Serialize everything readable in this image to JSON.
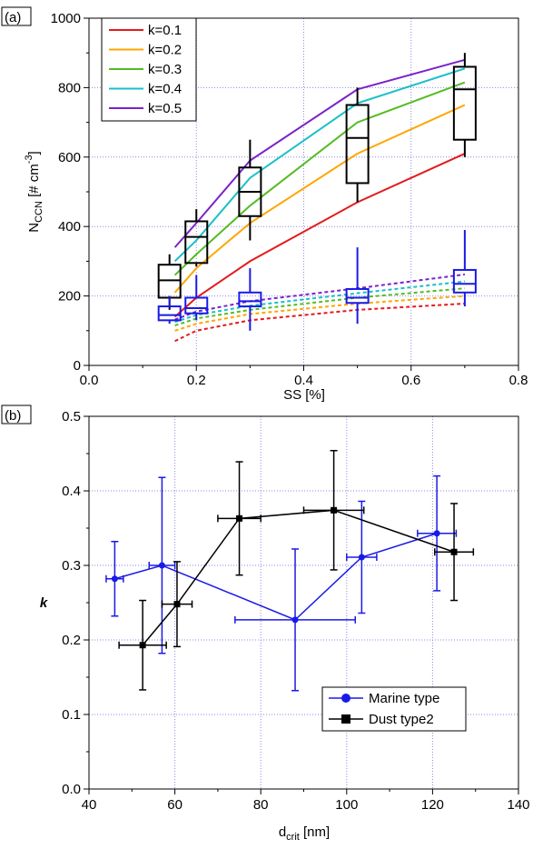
{
  "chart_data": [
    {
      "panel_label": "(a)",
      "type": "line",
      "xlabel": "SS [%]",
      "ylabel_main": "N",
      "ylabel_sub": "CCN",
      "ylabel_rest": " [# cm",
      "ylabel_sup": "-3",
      "ylabel_end": "]",
      "xlim": [
        0.0,
        0.8
      ],
      "ylim": [
        0,
        1000
      ],
      "xticks": [
        "0.0",
        "0.2",
        "0.4",
        "0.6",
        "0.8"
      ],
      "xtick_values": [
        0.0,
        0.2,
        0.4,
        0.6,
        0.8
      ],
      "yticks": [
        "0",
        "200",
        "400",
        "600",
        "800",
        "1000"
      ],
      "ytick_values": [
        0,
        200,
        400,
        600,
        800,
        1000
      ],
      "grid": true,
      "legend_position": "top-left",
      "series": [
        {
          "name": "k=0.1",
          "color": "#e41a1c",
          "x": [
            0.16,
            0.2,
            0.3,
            0.5,
            0.7
          ],
          "solid": [
            140,
            195,
            300,
            470,
            610
          ],
          "dashed_x": [
            0.16,
            0.2,
            0.3,
            0.5,
            0.7
          ],
          "dashed": [
            70,
            100,
            130,
            160,
            178
          ]
        },
        {
          "name": "k=0.2",
          "color": "#ffa500",
          "x": [
            0.16,
            0.2,
            0.3,
            0.5,
            0.7
          ],
          "solid": [
            210,
            280,
            410,
            610,
            750
          ],
          "dashed_x": [
            0.16,
            0.2,
            0.3,
            0.5,
            0.7
          ],
          "dashed": [
            100,
            120,
            148,
            178,
            200
          ]
        },
        {
          "name": "k=0.3",
          "color": "#55bb22",
          "x": [
            0.16,
            0.2,
            0.3,
            0.5,
            0.7
          ],
          "solid": [
            260,
            320,
            460,
            700,
            815
          ],
          "dashed_x": [
            0.16,
            0.2,
            0.3,
            0.5,
            0.7
          ],
          "dashed": [
            115,
            135,
            160,
            195,
            222
          ]
        },
        {
          "name": "k=0.4",
          "color": "#19c0c8",
          "x": [
            0.16,
            0.2,
            0.3,
            0.5,
            0.7
          ],
          "solid": [
            300,
            360,
            540,
            755,
            855
          ],
          "dashed_x": [
            0.16,
            0.2,
            0.3,
            0.5,
            0.7
          ],
          "dashed": [
            125,
            145,
            172,
            208,
            242
          ]
        },
        {
          "name": "k=0.5",
          "color": "#7a22cc",
          "x": [
            0.16,
            0.2,
            0.3,
            0.5,
            0.7
          ],
          "solid": [
            340,
            410,
            590,
            795,
            880
          ],
          "dashed_x": [
            0.16,
            0.2,
            0.3,
            0.5,
            0.7
          ],
          "dashed": [
            132,
            155,
            185,
            222,
            262
          ]
        }
      ],
      "boxes_black": [
        {
          "x": 0.15,
          "whislo": 160,
          "q1": 195,
          "med": 245,
          "q3": 290,
          "whishi": 320
        },
        {
          "x": 0.2,
          "whislo": 285,
          "q1": 295,
          "med": 370,
          "q3": 415,
          "whishi": 450
        },
        {
          "x": 0.3,
          "whislo": 360,
          "q1": 430,
          "med": 500,
          "q3": 570,
          "whishi": 650
        },
        {
          "x": 0.5,
          "whislo": 470,
          "q1": 525,
          "med": 655,
          "q3": 750,
          "whishi": 800
        },
        {
          "x": 0.7,
          "whislo": 600,
          "q1": 650,
          "med": 795,
          "q3": 860,
          "whishi": 900
        }
      ],
      "boxes_blue": [
        {
          "x": 0.15,
          "whislo": 120,
          "q1": 130,
          "med": 145,
          "q3": 170,
          "whishi": 200
        },
        {
          "x": 0.2,
          "whislo": 130,
          "q1": 150,
          "med": 165,
          "q3": 195,
          "whishi": 260
        },
        {
          "x": 0.3,
          "whislo": 100,
          "q1": 170,
          "med": 185,
          "q3": 210,
          "whishi": 280
        },
        {
          "x": 0.5,
          "whislo": 120,
          "q1": 180,
          "med": 195,
          "q3": 220,
          "whishi": 340
        },
        {
          "x": 0.7,
          "whislo": 170,
          "q1": 210,
          "med": 235,
          "q3": 275,
          "whishi": 390
        }
      ]
    },
    {
      "panel_label": "(b)",
      "type": "scatter",
      "xlabel_main": "d",
      "xlabel_sub": "crit",
      "xlabel_rest": " [nm]",
      "ylabel": "k",
      "xlim": [
        40,
        140
      ],
      "ylim": [
        0.0,
        0.5
      ],
      "xticks": [
        "40",
        "60",
        "80",
        "100",
        "120",
        "140"
      ],
      "xtick_values": [
        40,
        60,
        80,
        100,
        120,
        140
      ],
      "yticks": [
        "0.0",
        "0.1",
        "0.2",
        "0.3",
        "0.4",
        "0.5"
      ],
      "ytick_values": [
        0.0,
        0.1,
        0.2,
        0.3,
        0.4,
        0.5
      ],
      "grid": true,
      "legend_position": "bottom-right",
      "series": [
        {
          "name": "Marine type",
          "color": "#1a1ae6",
          "marker": "circle",
          "x": [
            46,
            57,
            88,
            103.5,
            121
          ],
          "y": [
            0.282,
            0.3,
            0.227,
            0.311,
            0.343
          ],
          "xerr": [
            2,
            3,
            14,
            3.5,
            4.5
          ],
          "yerr": [
            0.05,
            0.118,
            0.095,
            0.075,
            0.077
          ]
        },
        {
          "name": "Dust type2",
          "color": "#000000",
          "marker": "square",
          "x": [
            52.5,
            60.5,
            75,
            97,
            125
          ],
          "y": [
            0.193,
            0.248,
            0.363,
            0.374,
            0.318
          ],
          "xerr": [
            5.5,
            3.5,
            5,
            7,
            4.5
          ],
          "yerr": [
            0.06,
            0.057,
            0.076,
            0.08,
            0.065
          ]
        }
      ]
    }
  ]
}
